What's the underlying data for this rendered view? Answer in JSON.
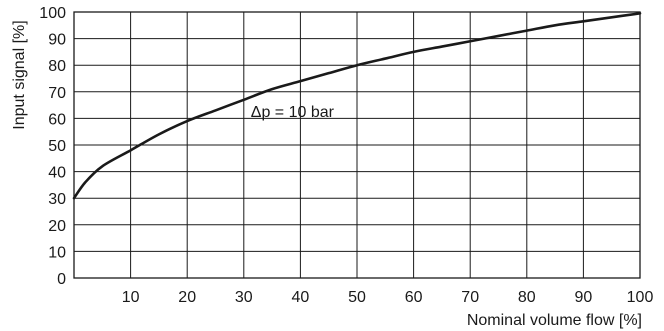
{
  "chart_data": {
    "type": "line",
    "title": "",
    "xlabel": "Nominal volume flow [%]",
    "ylabel": "Input signal [%]",
    "xlim": [
      0,
      100
    ],
    "ylim": [
      0,
      100
    ],
    "x_ticks": [
      10,
      20,
      30,
      40,
      50,
      60,
      70,
      80,
      90,
      100
    ],
    "y_ticks": [
      0,
      10,
      20,
      30,
      40,
      50,
      60,
      70,
      80,
      90,
      100
    ],
    "grid": true,
    "series": [
      {
        "x": [
          0,
          2,
          5,
          10,
          15,
          20,
          25,
          30,
          35,
          40,
          45,
          50,
          55,
          60,
          65,
          70,
          75,
          80,
          85,
          90,
          95,
          100
        ],
        "y": [
          30,
          36,
          42,
          48,
          54,
          59,
          63,
          67,
          71,
          74,
          77,
          80,
          82.5,
          85,
          87,
          89,
          91,
          93,
          95,
          96.5,
          98,
          99.5
        ]
      }
    ],
    "annotations": [
      {
        "text": "Δp = 10 bar",
        "x": 33,
        "y": 65
      }
    ],
    "colors": {
      "line": "#1a1a1a",
      "grid": "#1a1a1a",
      "background": "#ffffff"
    }
  }
}
